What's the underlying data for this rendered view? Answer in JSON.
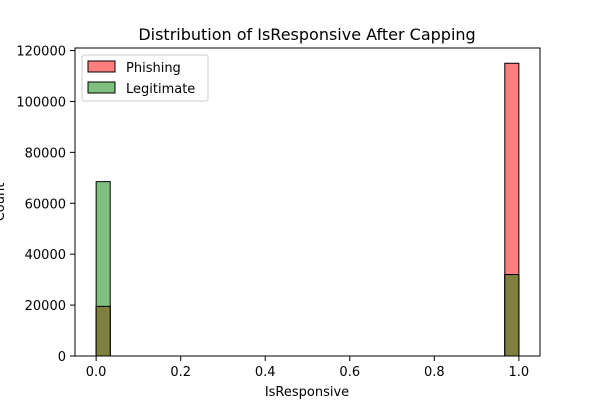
{
  "chart_data": {
    "type": "bar",
    "title": "Distribution of IsResponsive After Capping",
    "xlabel": "IsResponsive",
    "ylabel": "Count",
    "xlim": [
      -0.05,
      1.05
    ],
    "ylim": [
      0,
      121000
    ],
    "x_ticks": [
      "0.0",
      "0.2",
      "0.4",
      "0.6",
      "0.8",
      "1.0"
    ],
    "x_tick_values": [
      0.0,
      0.2,
      0.4,
      0.6,
      0.8,
      1.0
    ],
    "y_ticks": [
      "0",
      "20000",
      "40000",
      "60000",
      "80000",
      "100000",
      "120000"
    ],
    "y_tick_values": [
      0,
      20000,
      40000,
      60000,
      80000,
      100000,
      120000
    ],
    "bin_width": 0.0333,
    "overlap_color": "#7f7f3f",
    "legend_position": "upper-left",
    "series": [
      {
        "name": "Phishing",
        "color": "#ff7f7f",
        "bins": [
          {
            "x0": 0.0,
            "value": 19500
          },
          {
            "x0": 0.9667,
            "value": 115000
          }
        ]
      },
      {
        "name": "Legitimate",
        "color": "#7fbf7f",
        "bins": [
          {
            "x0": 0.0,
            "value": 68500
          },
          {
            "x0": 0.9667,
            "value": 32000
          }
        ]
      }
    ]
  }
}
